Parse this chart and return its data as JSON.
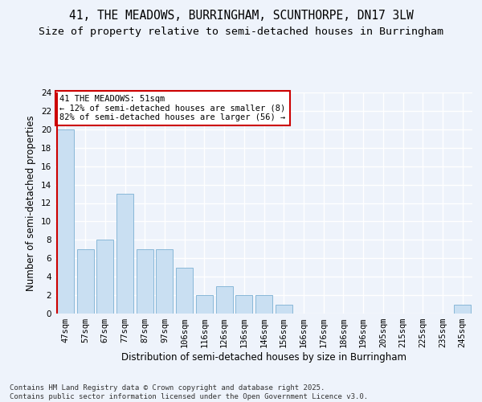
{
  "title_line1": "41, THE MEADOWS, BURRINGHAM, SCUNTHORPE, DN17 3LW",
  "title_line2": "Size of property relative to semi-detached houses in Burringham",
  "xlabel": "Distribution of semi-detached houses by size in Burringham",
  "ylabel": "Number of semi-detached properties",
  "categories": [
    "47sqm",
    "57sqm",
    "67sqm",
    "77sqm",
    "87sqm",
    "97sqm",
    "106sqm",
    "116sqm",
    "126sqm",
    "136sqm",
    "146sqm",
    "156sqm",
    "166sqm",
    "176sqm",
    "186sqm",
    "196sqm",
    "205sqm",
    "215sqm",
    "225sqm",
    "235sqm",
    "245sqm"
  ],
  "values": [
    20,
    7,
    8,
    13,
    7,
    7,
    5,
    2,
    3,
    2,
    2,
    1,
    0,
    0,
    0,
    0,
    0,
    0,
    0,
    0,
    1
  ],
  "bar_color": "#c9dff2",
  "bar_edge_color": "#89b8d8",
  "highlight_x_line_color": "#cc0000",
  "annotation_text": "41 THE MEADOWS: 51sqm\n← 12% of semi-detached houses are smaller (8)\n82% of semi-detached houses are larger (56) →",
  "annotation_box_color": "#ffffff",
  "annotation_box_edge_color": "#cc0000",
  "footnote": "Contains HM Land Registry data © Crown copyright and database right 2025.\nContains public sector information licensed under the Open Government Licence v3.0.",
  "ylim": [
    0,
    24
  ],
  "background_color": "#eef3fb",
  "grid_color": "#ffffff",
  "title_fontsize": 10.5,
  "subtitle_fontsize": 9.5,
  "axis_label_fontsize": 8.5,
  "tick_fontsize": 7.5,
  "annotation_fontsize": 7.5,
  "footnote_fontsize": 6.5
}
